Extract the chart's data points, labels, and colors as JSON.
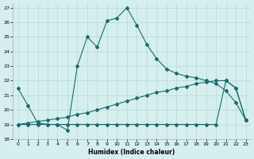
{
  "xlabel": "Humidex (Indice chaleur)",
  "bg_color": "#d5eeee",
  "grid_color": "#b8d8d8",
  "line_color": "#1a6b6b",
  "xlim": [
    -0.5,
    23.5
  ],
  "ylim": [
    18,
    27.3
  ],
  "xticks": [
    0,
    1,
    2,
    3,
    4,
    5,
    6,
    7,
    8,
    9,
    10,
    11,
    12,
    13,
    14,
    15,
    16,
    17,
    18,
    19,
    20,
    21,
    22,
    23
  ],
  "yticks": [
    18,
    19,
    20,
    21,
    22,
    23,
    24,
    25,
    26,
    27
  ],
  "line1_x": [
    0,
    1,
    2,
    3,
    4,
    5,
    6,
    7,
    8,
    9,
    10,
    11,
    12,
    13,
    14,
    15,
    16,
    17,
    18,
    19,
    20,
    21,
    22,
    23
  ],
  "line1_y": [
    21.5,
    20.3,
    19.1,
    19.0,
    19.0,
    18.6,
    23.0,
    25.0,
    24.3,
    26.1,
    26.3,
    27.0,
    25.8,
    24.5,
    23.5,
    22.8,
    22.5,
    22.3,
    22.2,
    22.0,
    21.8,
    21.3,
    20.5,
    19.3
  ],
  "line2_x": [
    0,
    1,
    2,
    3,
    4,
    5,
    6,
    7,
    8,
    9,
    10,
    11,
    12,
    13,
    14,
    15,
    16,
    17,
    18,
    19,
    20,
    21,
    22,
    23
  ],
  "line2_y": [
    19.0,
    19.0,
    19.0,
    19.0,
    19.0,
    19.0,
    19.0,
    19.0,
    19.0,
    19.0,
    19.0,
    19.0,
    19.0,
    19.0,
    19.0,
    19.0,
    19.0,
    19.0,
    19.0,
    19.0,
    19.0,
    22.0,
    21.5,
    19.3
  ],
  "line3_x": [
    0,
    1,
    2,
    3,
    4,
    5,
    6,
    7,
    8,
    9,
    10,
    11,
    12,
    13,
    14,
    15,
    16,
    17,
    18,
    19,
    20,
    21,
    22,
    23
  ],
  "line3_y": [
    19.0,
    19.1,
    19.2,
    19.3,
    19.4,
    19.5,
    19.7,
    19.8,
    20.0,
    20.2,
    20.4,
    20.6,
    20.8,
    21.0,
    21.2,
    21.3,
    21.5,
    21.6,
    21.8,
    21.9,
    22.0,
    22.0,
    21.5,
    19.3
  ]
}
